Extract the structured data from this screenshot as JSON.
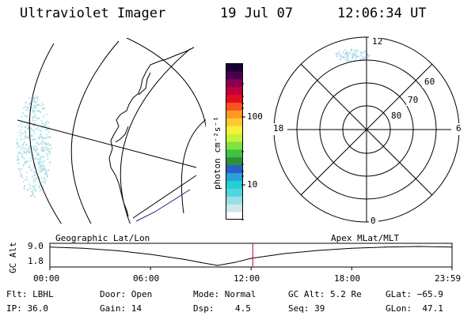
{
  "header": {
    "instrument": "Ultraviolet Imager",
    "date": "19 Jul 07",
    "time": "12:06:34 UT"
  },
  "colorbar": {
    "label": "photon cm⁻²s⁻¹",
    "ticks": [
      "100",
      "10"
    ],
    "colors": [
      "#ffffff",
      "#cfe8ec",
      "#9adfe6",
      "#4fd6df",
      "#22cfd6",
      "#2aa0d8",
      "#2a5fc8",
      "#2e8e3e",
      "#3fc33f",
      "#7fe23f",
      "#c8f23a",
      "#f5f03a",
      "#ffc830",
      "#ff9a20",
      "#ff5020",
      "#e01020",
      "#c0003a",
      "#8a0050",
      "#4a0050",
      "#1a0030"
    ]
  },
  "polar_plot": {
    "mlt_labels": [
      "12",
      "18",
      "6",
      "0"
    ],
    "mlat_labels": [
      "60",
      "70",
      "80"
    ],
    "aurora_color": "#bfe6ec"
  },
  "map": {
    "aurora_color": "#bfe6ec",
    "trace_color": "#1a2a80"
  },
  "timeline": {
    "left_label": "Geographic Lat/Lon",
    "right_label": "Apex MLat/MLT",
    "axis_label": "GC Alt",
    "y_max_label": "9.0",
    "y_min_label": "1.8",
    "x_ticks": [
      "00:00",
      "06:00",
      "12:00",
      "18:00",
      "23:59"
    ],
    "current_marker_color": "#c0001a"
  },
  "chart_data": {
    "type": "line",
    "xlabel": "",
    "ylabel": "GC Alt",
    "ylim": [
      1.8,
      9.0
    ],
    "x": [
      "00:00",
      "02:00",
      "04:00",
      "06:00",
      "08:00",
      "09:00",
      "10:00",
      "11:00",
      "12:00",
      "14:00",
      "16:00",
      "18:00",
      "20:00",
      "22:00",
      "23:59"
    ],
    "values": [
      8.8,
      8.3,
      7.4,
      6.0,
      4.1,
      2.9,
      1.8,
      2.9,
      4.5,
      6.3,
      7.5,
      8.3,
      8.8,
      9.0,
      8.8
    ],
    "current_time": "12:06"
  },
  "footer": {
    "filter_label": "Flt:",
    "filter_value": "LBHL",
    "ip_label": "IP:",
    "ip_value": "36.0",
    "door_label": "Door:",
    "door_value": "Open",
    "gain_label": "Gain:",
    "gain_value": "14",
    "mode_label": "Mode:",
    "mode_value": "Normal",
    "dsp_label": "Dsp:",
    "dsp_value": "4.5",
    "gcalt_label": "GC Alt:",
    "gcalt_value": "5.2 Re",
    "seq_label": "Seq:",
    "seq_value": "39",
    "glat_label": "GLat:",
    "glat_value": "−65.9",
    "glon_label": "GLon:",
    "glon_value": "47.1"
  }
}
